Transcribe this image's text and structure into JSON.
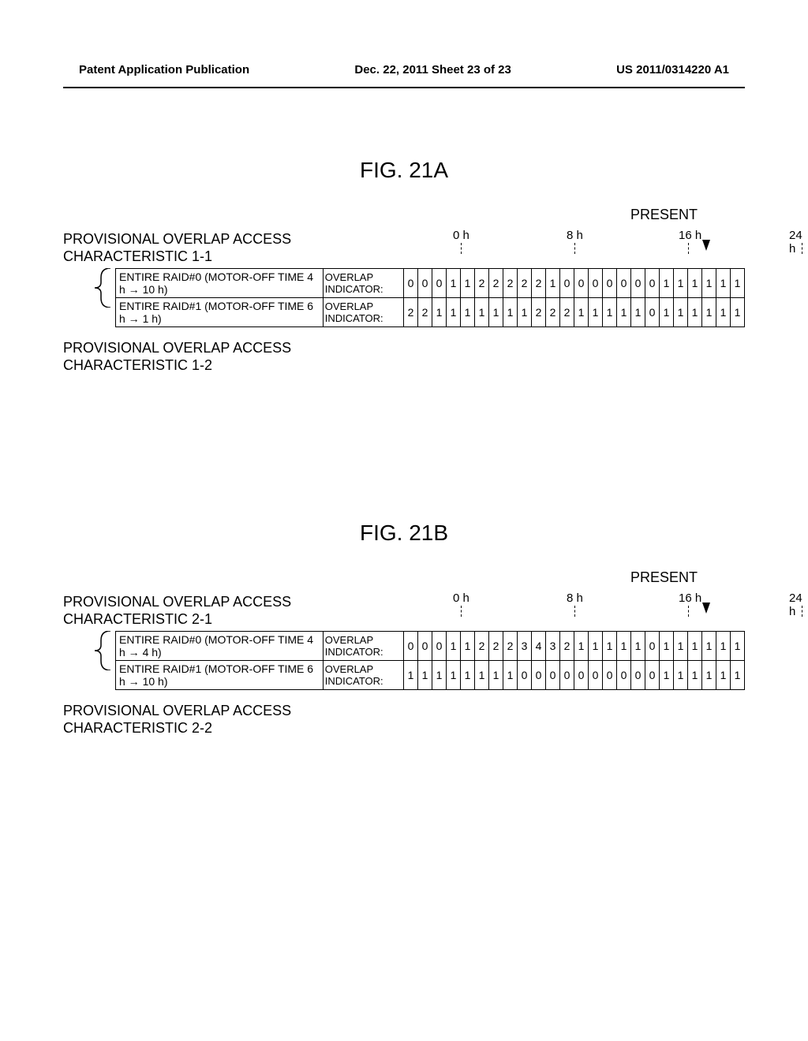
{
  "header": {
    "left": "Patent Application Publication",
    "center": "Dec. 22, 2011  Sheet 23 of 23",
    "right": "US 2011/0314220 A1"
  },
  "figA": {
    "title": "FIG. 21A",
    "present": "PRESENT",
    "char1": "PROVISIONAL OVERLAP ACCESS\nCHARACTERISTIC 1-1",
    "char2": "PROVISIONAL OVERLAP ACCESS\nCHARACTERISTIC 1-2",
    "ticks": [
      "0 h",
      "8 h",
      "16 h",
      "24 h"
    ],
    "row0": {
      "desc": "ENTIRE RAID#0 (MOTOR-OFF TIME 4 h → 10 h)",
      "label": "OVERLAP INDICATOR:",
      "cells": [
        "0",
        "0",
        "0",
        "1",
        "1",
        "2",
        "2",
        "2",
        "2",
        "2",
        "1",
        "0",
        "0",
        "0",
        "0",
        "0",
        "0",
        "0",
        "1",
        "1",
        "1",
        "1",
        "1",
        "1"
      ]
    },
    "row1": {
      "desc": "ENTIRE RAID#1 (MOTOR-OFF TIME 6 h → 1 h)",
      "label": "OVERLAP INDICATOR:",
      "cells": [
        "2",
        "2",
        "1",
        "1",
        "1",
        "1",
        "1",
        "1",
        "1",
        "2",
        "2",
        "2",
        "1",
        "1",
        "1",
        "1",
        "1",
        "0",
        "1",
        "1",
        "1",
        "1",
        "1",
        "1"
      ]
    }
  },
  "figB": {
    "title": "FIG. 21B",
    "present": "PRESENT",
    "char1": "PROVISIONAL OVERLAP ACCESS\nCHARACTERISTIC 2-1",
    "char2": "PROVISIONAL OVERLAP ACCESS\nCHARACTERISTIC 2-2",
    "ticks": [
      "0 h",
      "8 h",
      "16 h",
      "24 h"
    ],
    "row0": {
      "desc": "ENTIRE RAID#0 (MOTOR-OFF TIME 4 h → 4 h)",
      "label": "OVERLAP INDICATOR:",
      "cells": [
        "0",
        "0",
        "0",
        "1",
        "1",
        "2",
        "2",
        "2",
        "3",
        "4",
        "3",
        "2",
        "1",
        "1",
        "1",
        "1",
        "1",
        "0",
        "1",
        "1",
        "1",
        "1",
        "1",
        "1"
      ]
    },
    "row1": {
      "desc": "ENTIRE RAID#1 (MOTOR-OFF TIME 6 h → 10 h)",
      "label": "OVERLAP INDICATOR:",
      "cells": [
        "1",
        "1",
        "1",
        "1",
        "1",
        "1",
        "1",
        "1",
        "0",
        "0",
        "0",
        "0",
        "0",
        "0",
        "0",
        "0",
        "0",
        "0",
        "1",
        "1",
        "1",
        "1",
        "1",
        "1"
      ]
    }
  }
}
